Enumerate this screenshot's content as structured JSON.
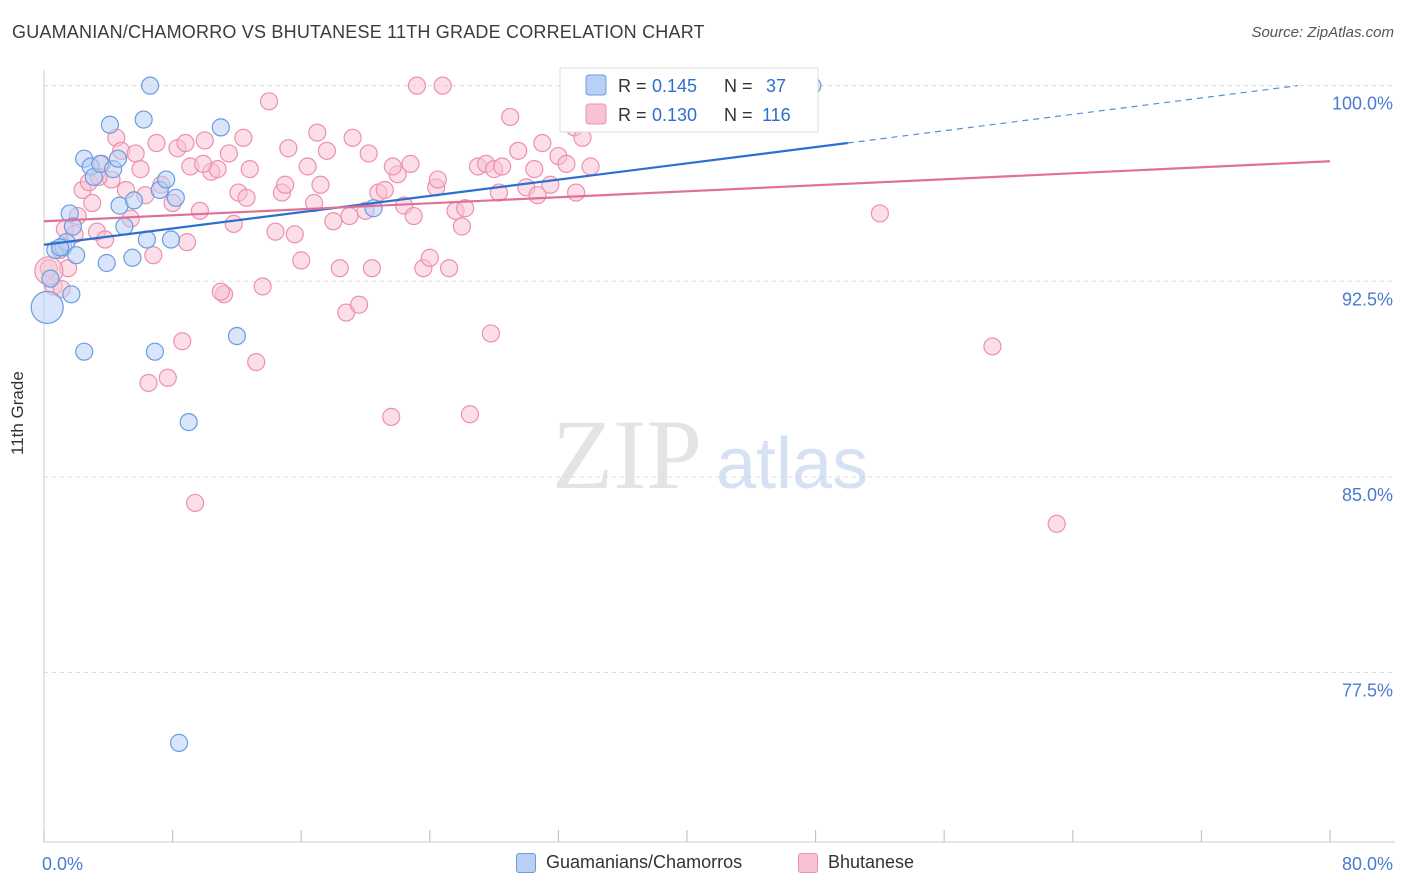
{
  "title": "GUAMANIAN/CHAMORRO VS BHUTANESE 11TH GRADE CORRELATION CHART",
  "source": "Source: ZipAtlas.com",
  "watermark": {
    "zip": "ZIP",
    "atlas": "atlas"
  },
  "colors": {
    "blue_fill": "#b8d0f5",
    "blue_stroke": "#6a9de0",
    "blue_line": "#2c6fd1",
    "pink_fill": "#f7c3d4",
    "pink_stroke": "#ee8fb0",
    "pink_line": "#e0709a",
    "axis_text": "#4a7bd0",
    "grid": "#dddddd"
  },
  "legend": {
    "rows": [
      {
        "r_label": "R =",
        "r_value": "0.145",
        "n_label": "N =",
        "n_value": "37"
      },
      {
        "r_label": "R =",
        "r_value": "0.130",
        "n_label": "N =",
        "n_value": "116"
      }
    ]
  },
  "chart_data": {
    "type": "scatter",
    "title": "GUAMANIAN/CHAMORRO VS BHUTANESE 11TH GRADE CORRELATION CHART",
    "xlabel": "",
    "ylabel": "11th Grade",
    "xlim": [
      0,
      80
    ],
    "ylim": [
      71.0,
      100.6
    ],
    "x_tick_labels": [
      "0.0%",
      "80.0%"
    ],
    "y_ticks": [
      100.0,
      92.5,
      85.0,
      77.5
    ],
    "y_tick_labels": [
      "100.0%",
      "92.5%",
      "85.0%",
      "77.5%"
    ],
    "grid": true,
    "legend_position": "top-center",
    "series": [
      {
        "name": "Guamanians/Chamorros",
        "color": "#6a9de0",
        "trend": {
          "x0": 0,
          "y0": 93.9,
          "x1": 50,
          "y1": 97.8,
          "dash_to_x": 78,
          "dash_to_y": 100.0
        },
        "points": [
          [
            0.2,
            91.5
          ],
          [
            0.4,
            92.6
          ],
          [
            0.7,
            93.7
          ],
          [
            1.2,
            93.8
          ],
          [
            1.4,
            94.0
          ],
          [
            1.6,
            95.1
          ],
          [
            1.8,
            94.6
          ],
          [
            2.0,
            93.5
          ],
          [
            2.5,
            97.2
          ],
          [
            2.9,
            96.9
          ],
          [
            3.1,
            96.5
          ],
          [
            3.5,
            97.0
          ],
          [
            3.9,
            93.2
          ],
          [
            4.1,
            98.5
          ],
          [
            4.3,
            96.8
          ],
          [
            4.6,
            97.2
          ],
          [
            4.7,
            95.4
          ],
          [
            5.0,
            94.6
          ],
          [
            5.5,
            93.4
          ],
          [
            5.6,
            95.6
          ],
          [
            6.2,
            98.7
          ],
          [
            6.4,
            94.1
          ],
          [
            6.6,
            100.0
          ],
          [
            6.9,
            89.8
          ],
          [
            7.2,
            96.0
          ],
          [
            7.6,
            96.4
          ],
          [
            7.9,
            94.1
          ],
          [
            8.2,
            95.7
          ],
          [
            9.0,
            87.1
          ],
          [
            11.0,
            98.4
          ],
          [
            12.0,
            90.4
          ],
          [
            20.5,
            95.3
          ],
          [
            2.5,
            89.8
          ],
          [
            1.7,
            92.0
          ],
          [
            8.4,
            74.8
          ],
          [
            47.8,
            100.0
          ],
          [
            1.0,
            93.8
          ]
        ]
      },
      {
        "name": "Bhutanese",
        "color": "#ee8fb0",
        "trend": {
          "x0": 0,
          "y0": 94.8,
          "x1": 80,
          "y1": 97.1
        },
        "points": [
          [
            0.3,
            93.0
          ],
          [
            0.6,
            92.3
          ],
          [
            1.1,
            92.2
          ],
          [
            1.3,
            94.5
          ],
          [
            1.5,
            93.0
          ],
          [
            1.9,
            94.3
          ],
          [
            2.1,
            95.0
          ],
          [
            2.4,
            96.0
          ],
          [
            2.8,
            96.3
          ],
          [
            3.0,
            95.5
          ],
          [
            3.3,
            94.4
          ],
          [
            3.6,
            97.0
          ],
          [
            3.8,
            94.1
          ],
          [
            4.2,
            96.4
          ],
          [
            4.5,
            98.0
          ],
          [
            4.8,
            97.5
          ],
          [
            5.1,
            96.0
          ],
          [
            5.4,
            94.9
          ],
          [
            5.7,
            97.4
          ],
          [
            6.0,
            96.8
          ],
          [
            6.3,
            95.8
          ],
          [
            6.5,
            88.6
          ],
          [
            6.8,
            93.5
          ],
          [
            7.0,
            97.8
          ],
          [
            7.3,
            96.2
          ],
          [
            7.7,
            88.8
          ],
          [
            8.0,
            95.5
          ],
          [
            8.3,
            97.6
          ],
          [
            8.6,
            90.2
          ],
          [
            8.9,
            94.0
          ],
          [
            9.1,
            96.9
          ],
          [
            9.4,
            84.0
          ],
          [
            9.7,
            95.2
          ],
          [
            10.0,
            97.9
          ],
          [
            10.4,
            96.7
          ],
          [
            10.8,
            96.8
          ],
          [
            11.2,
            92.0
          ],
          [
            11.5,
            97.4
          ],
          [
            11.8,
            94.7
          ],
          [
            12.1,
            95.9
          ],
          [
            12.4,
            98.0
          ],
          [
            12.8,
            96.8
          ],
          [
            13.2,
            89.4
          ],
          [
            13.6,
            92.3
          ],
          [
            14.0,
            99.4
          ],
          [
            14.4,
            94.4
          ],
          [
            14.8,
            95.9
          ],
          [
            15.2,
            97.6
          ],
          [
            15.6,
            94.3
          ],
          [
            16.0,
            93.3
          ],
          [
            16.4,
            96.9
          ],
          [
            16.8,
            95.5
          ],
          [
            17.2,
            96.2
          ],
          [
            17.6,
            97.5
          ],
          [
            18.0,
            94.8
          ],
          [
            18.4,
            93.0
          ],
          [
            18.8,
            91.3
          ],
          [
            19.2,
            98.0
          ],
          [
            19.6,
            91.6
          ],
          [
            20.0,
            95.2
          ],
          [
            20.4,
            93.0
          ],
          [
            20.8,
            95.9
          ],
          [
            21.2,
            96.0
          ],
          [
            21.6,
            87.3
          ],
          [
            22.0,
            96.6
          ],
          [
            22.4,
            95.4
          ],
          [
            22.8,
            97.0
          ],
          [
            23.2,
            100.0
          ],
          [
            23.6,
            93.0
          ],
          [
            24.0,
            93.4
          ],
          [
            24.4,
            96.1
          ],
          [
            24.8,
            100.0
          ],
          [
            25.2,
            93.0
          ],
          [
            25.6,
            95.2
          ],
          [
            26.0,
            94.6
          ],
          [
            26.5,
            87.4
          ],
          [
            27.0,
            96.9
          ],
          [
            27.5,
            97.0
          ],
          [
            28.0,
            96.8
          ],
          [
            28.5,
            96.9
          ],
          [
            29.0,
            98.8
          ],
          [
            29.5,
            97.5
          ],
          [
            30.0,
            96.1
          ],
          [
            30.5,
            96.8
          ],
          [
            31.0,
            97.8
          ],
          [
            31.5,
            96.2
          ],
          [
            32.0,
            97.3
          ],
          [
            32.5,
            97.0
          ],
          [
            33.0,
            98.4
          ],
          [
            33.5,
            98.0
          ],
          [
            34.0,
            96.9
          ],
          [
            35.0,
            99.0
          ],
          [
            40.0,
            99.3
          ],
          [
            44.0,
            99.8
          ],
          [
            47.0,
            100.0
          ],
          [
            52.0,
            95.1
          ],
          [
            59.0,
            90.0
          ],
          [
            63.0,
            83.2
          ],
          [
            1.0,
            93.7
          ],
          [
            3.4,
            96.5
          ],
          [
            8.8,
            97.8
          ],
          [
            9.9,
            97.0
          ],
          [
            12.6,
            95.7
          ],
          [
            15.0,
            96.2
          ],
          [
            17.0,
            98.2
          ],
          [
            20.2,
            97.4
          ],
          [
            21.7,
            96.9
          ],
          [
            24.5,
            96.4
          ],
          [
            26.2,
            95.3
          ],
          [
            28.3,
            95.9
          ],
          [
            30.7,
            95.8
          ],
          [
            33.1,
            95.9
          ],
          [
            11.0,
            92.1
          ],
          [
            19.0,
            95.0
          ],
          [
            23.0,
            95.0
          ],
          [
            27.8,
            90.5
          ]
        ]
      }
    ]
  },
  "bottom_legend": [
    {
      "label": "Guamanians/Chamorros"
    },
    {
      "label": "Bhutanese"
    }
  ]
}
